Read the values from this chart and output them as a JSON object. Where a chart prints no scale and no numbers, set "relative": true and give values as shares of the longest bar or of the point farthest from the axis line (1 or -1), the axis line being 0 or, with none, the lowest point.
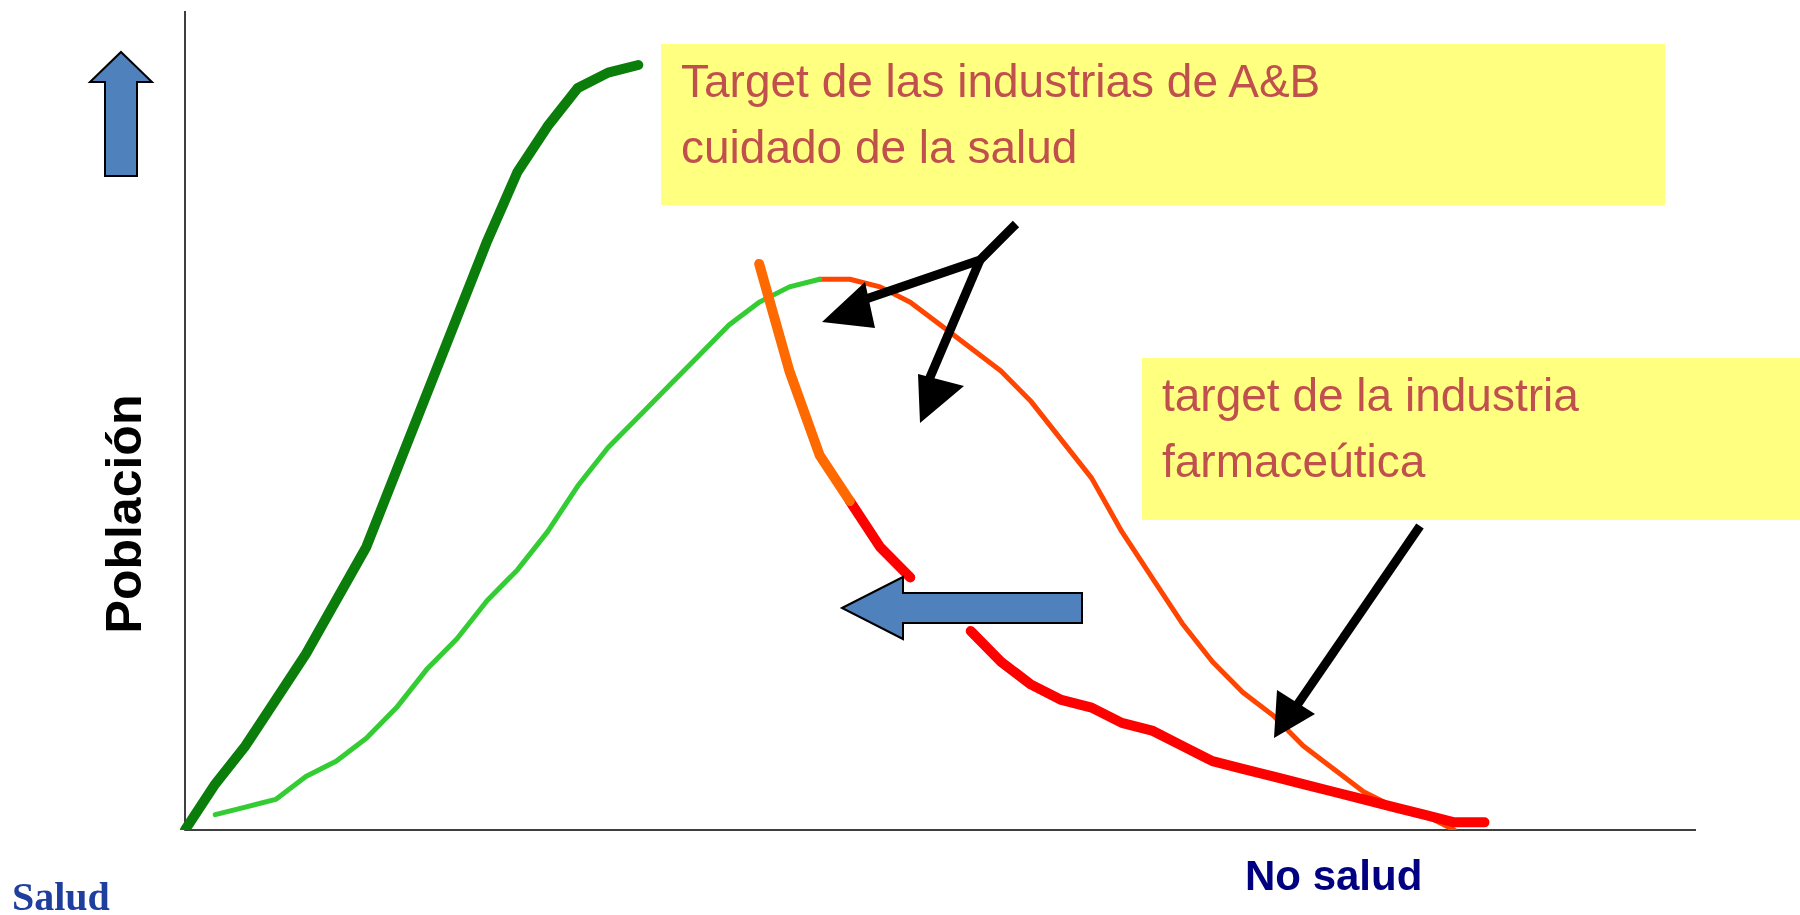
{
  "chart_data": {
    "type": "line",
    "relative": true,
    "ylabel": "Población",
    "legend": false,
    "marker": "none",
    "line_style": "solid",
    "annotations": [
      "Salud",
      "No salud",
      "Target de   las industrias de A&B\ncuidado de la salud",
      " target de la industria\nfarmaceútica"
    ],
    "categories": [
      null,
      null,
      null,
      null,
      null,
      null,
      null,
      null,
      null,
      null,
      null,
      null,
      null,
      null,
      null,
      null,
      null,
      null,
      null,
      null,
      null,
      null,
      null,
      null,
      null,
      null,
      null,
      null,
      null,
      null,
      null,
      null,
      null,
      null,
      null,
      null,
      null,
      null,
      null,
      null,
      null,
      null,
      null,
      null,
      null,
      null,
      null,
      null,
      null,
      null,
      null
    ],
    "series": [
      {
        "color": "#0a7d0a",
        "values": [
          0,
          0.06,
          0.11,
          0.17,
          0.23,
          0.3,
          0.37,
          0.47,
          0.57,
          0.67,
          0.77,
          0.86,
          0.92,
          0.97,
          0.99,
          1,
          null,
          null,
          null,
          null,
          null,
          null,
          null,
          null,
          null,
          null,
          null,
          null,
          null,
          null,
          null,
          null,
          null,
          null,
          null,
          null,
          null,
          null,
          null,
          null,
          null,
          null,
          null,
          null,
          null,
          null,
          null,
          null,
          null,
          null,
          null
        ]
      },
      {
        "color": "#ff6a00",
        "values": [
          null,
          null,
          null,
          null,
          null,
          null,
          null,
          null,
          null,
          null,
          null,
          null,
          null,
          null,
          null,
          null,
          null,
          null,
          null,
          0.74,
          0.6,
          0.49,
          0.43,
          null,
          null,
          null,
          null,
          null,
          null,
          null,
          null,
          null,
          null,
          null,
          null,
          null,
          null,
          null,
          null,
          null,
          null,
          null,
          null,
          null,
          null,
          null,
          null,
          null,
          null,
          null,
          null
        ]
      },
      {
        "color": "#ff0000",
        "values": [
          null,
          null,
          null,
          null,
          null,
          null,
          null,
          null,
          null,
          null,
          null,
          null,
          null,
          null,
          null,
          null,
          null,
          null,
          null,
          null,
          null,
          null,
          0.43,
          0.37,
          0.33,
          null,
          0.26,
          0.22,
          0.19,
          0.17,
          0.16,
          0.14,
          0.13,
          0.11,
          0.09,
          0.08,
          0.07,
          0.06,
          0.05,
          0.04,
          0.03,
          0.02,
          0.01,
          0.01,
          null,
          null,
          null,
          null,
          null,
          null,
          null
        ]
      },
      {
        "color": "#33cc33",
        "values": [
          null,
          0.02,
          0.03,
          0.04,
          0.07,
          0.09,
          0.12,
          0.16,
          0.21,
          0.25,
          0.3,
          0.34,
          0.39,
          0.45,
          0.5,
          0.54,
          0.58,
          0.62,
          0.66,
          0.69,
          0.71,
          0.72,
          null,
          null,
          null,
          null,
          null,
          null,
          null,
          null,
          null,
          null,
          null,
          null,
          null,
          null,
          null,
          null,
          null,
          null,
          null,
          null,
          null,
          null,
          null,
          null,
          null,
          null,
          null,
          null,
          null
        ]
      },
      {
        "color": "#ff4500",
        "values": [
          null,
          null,
          null,
          null,
          null,
          null,
          null,
          null,
          null,
          null,
          null,
          null,
          null,
          null,
          null,
          null,
          null,
          null,
          null,
          null,
          null,
          0.72,
          0.72,
          0.71,
          0.69,
          0.66,
          0.63,
          0.6,
          0.56,
          0.51,
          0.46,
          0.39,
          0.33,
          0.27,
          0.22,
          0.18,
          0.15,
          0.11,
          0.08,
          0.05,
          0.03,
          0.02,
          0,
          null,
          null,
          null,
          null,
          null,
          null,
          null,
          null
        ]
      }
    ]
  }
}
